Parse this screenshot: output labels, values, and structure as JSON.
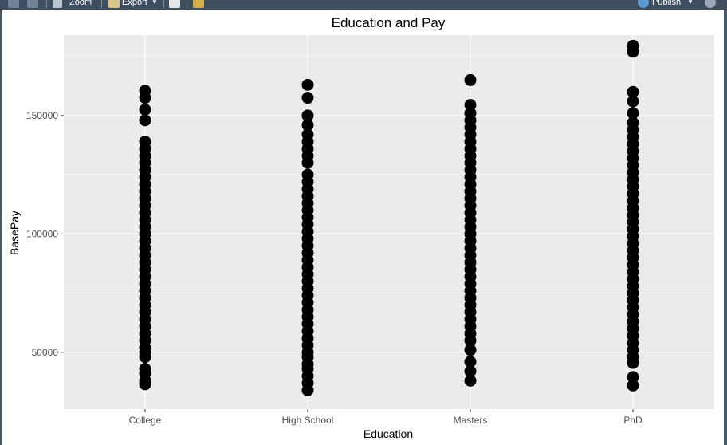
{
  "toolbar": {
    "zoom_label": "Zoom",
    "export_label": "Export",
    "publish_label": "Publish"
  },
  "chart_data": {
    "type": "scatter",
    "title": "Education and Pay",
    "xlabel": "Education",
    "ylabel": "BasePay",
    "categories": [
      "College",
      "High School",
      "Masters",
      "PhD"
    ],
    "y_ticks": [
      50000,
      100000,
      150000
    ],
    "y_tick_labels": [
      "50000",
      "100000",
      "150000"
    ],
    "ylim": [
      26000,
      184000
    ],
    "grid": true,
    "point_color": "#000000",
    "panel_color": "#ebebeb",
    "series": [
      {
        "category": "College",
        "values": [
          36500,
          38000,
          41000,
          43000,
          48000,
          50000,
          52000,
          55000,
          58000,
          61000,
          64000,
          67000,
          70000,
          73000,
          76000,
          79000,
          82000,
          85000,
          88000,
          91000,
          94000,
          97000,
          100000,
          103000,
          106000,
          109000,
          112000,
          115000,
          118000,
          121000,
          124000,
          127000,
          130000,
          133000,
          136000,
          139000,
          148000,
          152500,
          157500,
          160500
        ]
      },
      {
        "category": "High School",
        "values": [
          34000,
          37000,
          40000,
          43000,
          45000,
          48000,
          50000,
          53000,
          56000,
          59000,
          62000,
          65000,
          68000,
          71000,
          74000,
          77000,
          80000,
          83000,
          86000,
          89000,
          92000,
          95000,
          98000,
          101000,
          104000,
          107000,
          110000,
          113000,
          116000,
          119000,
          122000,
          125000,
          130000,
          133000,
          136000,
          139000,
          142000,
          146000,
          150000,
          157500,
          163000
        ]
      },
      {
        "category": "Masters",
        "values": [
          38000,
          42000,
          46000,
          51000,
          55000,
          58000,
          61000,
          64000,
          67000,
          70000,
          73000,
          76000,
          79000,
          82000,
          85000,
          88000,
          91000,
          94000,
          97000,
          100000,
          103000,
          106000,
          109000,
          112000,
          115000,
          118000,
          121000,
          124000,
          127000,
          130000,
          133000,
          136000,
          139000,
          142000,
          145000,
          148000,
          151000,
          154500,
          165000
        ]
      },
      {
        "category": "PhD",
        "values": [
          36000,
          39500,
          45500,
          48000,
          51000,
          54000,
          57000,
          60000,
          63000,
          66000,
          69000,
          72000,
          75000,
          78000,
          81000,
          84000,
          87000,
          90000,
          93000,
          96000,
          99000,
          102000,
          105000,
          108000,
          111000,
          114000,
          117000,
          120000,
          123000,
          126000,
          129000,
          132000,
          135000,
          138000,
          141000,
          144000,
          147000,
          151000,
          156000,
          160000,
          177000,
          179500
        ]
      }
    ]
  }
}
